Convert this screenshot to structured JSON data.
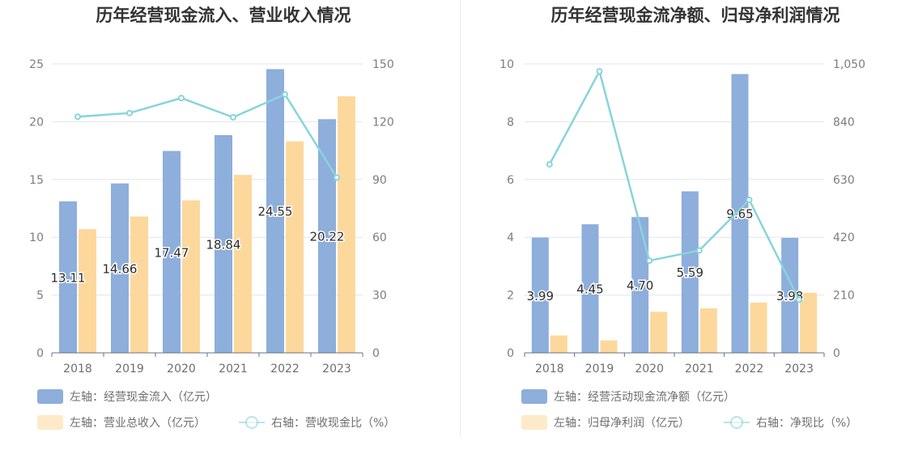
{
  "charts": [
    {
      "title": "历年经营现金流入、营业收入情况",
      "type": "bar",
      "categories": [
        "2018",
        "2019",
        "2020",
        "2021",
        "2022",
        "2023"
      ],
      "left_axis": {
        "ticks": [
          "0",
          "5",
          "10",
          "15",
          "20",
          "25"
        ],
        "min": 0,
        "max": 25
      },
      "right_axis": {
        "ticks": [
          "0",
          "30",
          "60",
          "90",
          "120",
          "150"
        ],
        "min": 0,
        "max": 150
      },
      "series": [
        {
          "name": "左轴：经营现金流入（亿元）",
          "axis": "left",
          "type": "bar",
          "color": "#8eaedb",
          "values": [
            13.11,
            14.66,
            17.47,
            18.84,
            24.55,
            20.22
          ],
          "labels": [
            "13.11",
            "14.66",
            "17.47",
            "18.84",
            "24.55",
            "20.22"
          ]
        },
        {
          "name": "左轴：营业总收入（亿元）",
          "axis": "left",
          "type": "bar",
          "color": "#fdd89c",
          "values": [
            10.7,
            11.8,
            13.2,
            15.4,
            18.3,
            22.2
          ]
        },
        {
          "name": "右轴：营收现金比（%）",
          "axis": "right",
          "type": "line",
          "color": "#88d4dc",
          "values": [
            122.6,
            124.5,
            132.3,
            122.3,
            134.2,
            91.0
          ]
        }
      ]
    },
    {
      "title": "历年经营现金流净额、归母净利润情况",
      "type": "bar",
      "categories": [
        "2018",
        "2019",
        "2020",
        "2021",
        "2022",
        "2023"
      ],
      "left_axis": {
        "ticks": [
          "0",
          "2",
          "4",
          "6",
          "8",
          "10"
        ],
        "min": 0,
        "max": 10
      },
      "right_axis": {
        "ticks": [
          "0",
          "210",
          "420",
          "630",
          "840",
          "1,050"
        ],
        "min": 0,
        "max": 1050
      },
      "series": [
        {
          "name": "左轴：经营活动现金流净额（亿元）",
          "axis": "left",
          "type": "bar",
          "color": "#8eaedb",
          "values": [
            3.99,
            4.45,
            4.7,
            5.59,
            9.65,
            3.98
          ],
          "labels": [
            "3.99",
            "4.45",
            "4.70",
            "5.59",
            "9.65",
            "3.98"
          ]
        },
        {
          "name": "左轴：归母净利润（亿元）",
          "axis": "left",
          "type": "bar",
          "color": "#fdd89c",
          "values": [
            0.6,
            0.43,
            1.42,
            1.54,
            1.74,
            2.08
          ]
        },
        {
          "name": "右轴：净现比（%）",
          "axis": "right",
          "type": "line",
          "color": "#88d4dc",
          "values": [
            685,
            1023,
            335,
            372,
            556,
            193
          ]
        }
      ]
    }
  ]
}
